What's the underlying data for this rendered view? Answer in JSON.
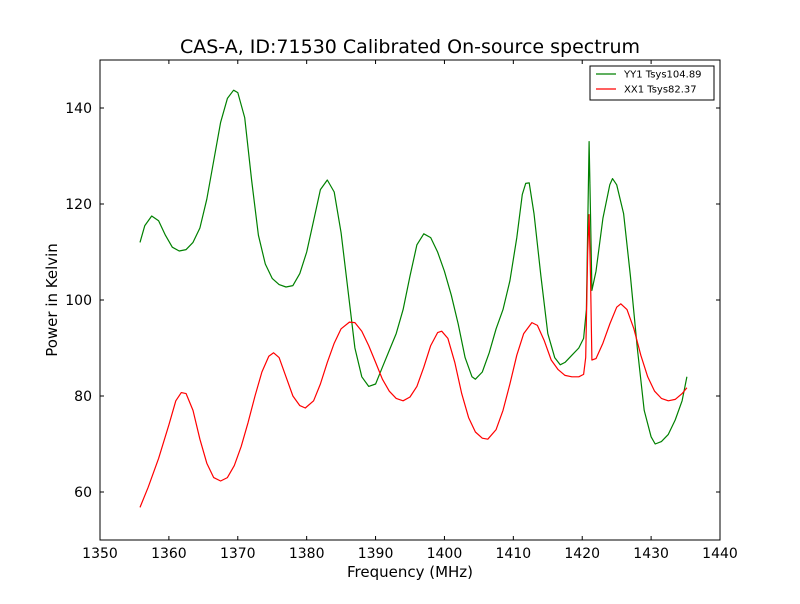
{
  "chart_data": {
    "type": "line",
    "title": "CAS-A, ID:71530 Calibrated On-source spectrum",
    "xlabel": "Frequency (MHz)",
    "ylabel": "Power in Kelvin",
    "xlim": [
      1350,
      1440
    ],
    "ylim": [
      50,
      150
    ],
    "xticks": [
      1350,
      1360,
      1370,
      1380,
      1390,
      1400,
      1410,
      1420,
      1430,
      1440
    ],
    "yticks": [
      60,
      80,
      100,
      120,
      140
    ],
    "grid": false,
    "legend_position": "top-right",
    "series": [
      {
        "name": "YY1 Tsys104.89",
        "color": "#008000",
        "points": [
          [
            1355.8,
            112
          ],
          [
            1356.5,
            115.5
          ],
          [
            1357.5,
            117.5
          ],
          [
            1358.5,
            116.5
          ],
          [
            1359.5,
            113.5
          ],
          [
            1360.5,
            111
          ],
          [
            1361.5,
            110.2
          ],
          [
            1362.5,
            110.5
          ],
          [
            1363.5,
            112
          ],
          [
            1364.5,
            115
          ],
          [
            1365.5,
            121
          ],
          [
            1366.5,
            129
          ],
          [
            1367.5,
            137
          ],
          [
            1368.5,
            142
          ],
          [
            1369.4,
            143.7
          ],
          [
            1370,
            143.2
          ],
          [
            1371,
            138
          ],
          [
            1372,
            125
          ],
          [
            1373,
            113.5
          ],
          [
            1374,
            107.5
          ],
          [
            1375,
            104.5
          ],
          [
            1376,
            103.2
          ],
          [
            1377,
            102.7
          ],
          [
            1378,
            103
          ],
          [
            1379,
            105.5
          ],
          [
            1380,
            110
          ],
          [
            1381,
            116.5
          ],
          [
            1382,
            123
          ],
          [
            1383,
            125
          ],
          [
            1384,
            122.5
          ],
          [
            1385,
            114
          ],
          [
            1386,
            102
          ],
          [
            1387,
            90
          ],
          [
            1388,
            84
          ],
          [
            1389,
            82
          ],
          [
            1390,
            82.5
          ],
          [
            1391,
            86
          ],
          [
            1392,
            89.5
          ],
          [
            1393,
            93
          ],
          [
            1394,
            98
          ],
          [
            1395,
            105
          ],
          [
            1396,
            111.5
          ],
          [
            1397,
            113.8
          ],
          [
            1398,
            113
          ],
          [
            1399,
            110
          ],
          [
            1400,
            106
          ],
          [
            1401,
            101
          ],
          [
            1402,
            95
          ],
          [
            1403,
            88
          ],
          [
            1404,
            84
          ],
          [
            1404.5,
            83.5
          ],
          [
            1405.5,
            85
          ],
          [
            1406.5,
            89
          ],
          [
            1407.5,
            94
          ],
          [
            1408.5,
            98
          ],
          [
            1409.5,
            104
          ],
          [
            1410.5,
            113
          ],
          [
            1411.3,
            122
          ],
          [
            1411.8,
            124.3
          ],
          [
            1412.3,
            124.4
          ],
          [
            1413,
            118
          ],
          [
            1414,
            105
          ],
          [
            1415,
            93
          ],
          [
            1416,
            88
          ],
          [
            1416.8,
            86.5
          ],
          [
            1417.5,
            87
          ],
          [
            1418.5,
            88.5
          ],
          [
            1419.5,
            90
          ],
          [
            1420.2,
            92
          ],
          [
            1420.6,
            98
          ],
          [
            1420.8,
            115
          ],
          [
            1421.0,
            133
          ],
          [
            1421.2,
            118
          ],
          [
            1421.4,
            102
          ],
          [
            1422,
            106
          ],
          [
            1423,
            117
          ],
          [
            1424,
            124
          ],
          [
            1424.4,
            125.3
          ],
          [
            1425,
            124
          ],
          [
            1426,
            118
          ],
          [
            1427,
            105
          ],
          [
            1428,
            90
          ],
          [
            1429,
            77
          ],
          [
            1430,
            71.5
          ],
          [
            1430.6,
            70
          ],
          [
            1431.5,
            70.5
          ],
          [
            1432.5,
            72
          ],
          [
            1433.5,
            75
          ],
          [
            1434.5,
            79
          ],
          [
            1435.2,
            84
          ]
        ]
      },
      {
        "name": "XX1 Tsys82.37",
        "color": "#ff0000",
        "points": [
          [
            1355.8,
            56.8
          ],
          [
            1357,
            61
          ],
          [
            1358.5,
            67
          ],
          [
            1360,
            74
          ],
          [
            1361,
            79
          ],
          [
            1361.8,
            80.7
          ],
          [
            1362.5,
            80.5
          ],
          [
            1363.5,
            77
          ],
          [
            1364.5,
            71
          ],
          [
            1365.5,
            66
          ],
          [
            1366.5,
            63
          ],
          [
            1367.5,
            62.3
          ],
          [
            1368.5,
            63
          ],
          [
            1369.5,
            65.5
          ],
          [
            1370.5,
            69.5
          ],
          [
            1371.5,
            74.5
          ],
          [
            1372.5,
            80
          ],
          [
            1373.5,
            85
          ],
          [
            1374.5,
            88.3
          ],
          [
            1375.2,
            89
          ],
          [
            1376,
            88
          ],
          [
            1377,
            84
          ],
          [
            1378,
            80
          ],
          [
            1379,
            78
          ],
          [
            1379.8,
            77.5
          ],
          [
            1381,
            79
          ],
          [
            1382,
            82.5
          ],
          [
            1383,
            87
          ],
          [
            1384,
            91
          ],
          [
            1385,
            94
          ],
          [
            1386.2,
            95.4
          ],
          [
            1387,
            95.3
          ],
          [
            1388,
            93.5
          ],
          [
            1389,
            90.5
          ],
          [
            1390,
            87
          ],
          [
            1391,
            83.5
          ],
          [
            1392,
            81
          ],
          [
            1393,
            79.5
          ],
          [
            1394,
            79
          ],
          [
            1395,
            79.8
          ],
          [
            1396,
            82
          ],
          [
            1397,
            86
          ],
          [
            1398,
            90.5
          ],
          [
            1399,
            93.2
          ],
          [
            1399.6,
            93.5
          ],
          [
            1400.5,
            92
          ],
          [
            1401.5,
            87
          ],
          [
            1402.5,
            80.5
          ],
          [
            1403.5,
            75.5
          ],
          [
            1404.5,
            72.5
          ],
          [
            1405.5,
            71.2
          ],
          [
            1406.3,
            71
          ],
          [
            1407.5,
            73
          ],
          [
            1408.5,
            77
          ],
          [
            1409.5,
            82.5
          ],
          [
            1410.5,
            88.5
          ],
          [
            1411.5,
            93
          ],
          [
            1412.7,
            95.3
          ],
          [
            1413.5,
            94.7
          ],
          [
            1414.5,
            91.5
          ],
          [
            1415.5,
            87.5
          ],
          [
            1416.5,
            85.5
          ],
          [
            1417.5,
            84.3
          ],
          [
            1418.5,
            84
          ],
          [
            1419.5,
            84
          ],
          [
            1420.2,
            84.5
          ],
          [
            1420.5,
            88
          ],
          [
            1420.8,
            110
          ],
          [
            1421.0,
            117.8
          ],
          [
            1421.2,
            105
          ],
          [
            1421.4,
            87.5
          ],
          [
            1422,
            87.8
          ],
          [
            1423,
            91
          ],
          [
            1424,
            95
          ],
          [
            1425,
            98.5
          ],
          [
            1425.6,
            99.2
          ],
          [
            1426.5,
            98
          ],
          [
            1427.5,
            94
          ],
          [
            1428.5,
            88.5
          ],
          [
            1429.5,
            84
          ],
          [
            1430.5,
            81
          ],
          [
            1431.5,
            79.5
          ],
          [
            1432.5,
            79
          ],
          [
            1433.5,
            79.3
          ],
          [
            1434.5,
            80.5
          ],
          [
            1435.2,
            81.7
          ]
        ]
      }
    ]
  }
}
